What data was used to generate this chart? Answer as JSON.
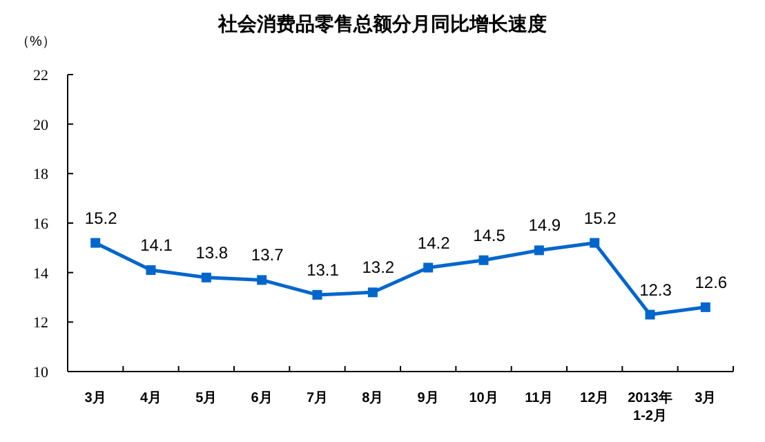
{
  "chart_data": {
    "type": "line",
    "title": "社会消费品零售总额分月同比增长速度",
    "ylabel": "（%）",
    "categories": [
      "3月",
      "4月",
      "5月",
      "6月",
      "7月",
      "8月",
      "9月",
      "10月",
      "11月",
      "12月",
      "2013年\n1-2月",
      "3月"
    ],
    "series": [
      {
        "color": "#0066cc",
        "values": [
          15.2,
          14.1,
          13.8,
          13.7,
          13.1,
          13.2,
          14.2,
          14.5,
          14.9,
          15.2,
          12.3,
          12.6
        ]
      }
    ],
    "ylim": [
      10,
      22
    ],
    "yticks": [
      10,
      12,
      14,
      16,
      18,
      20,
      22
    ],
    "grid": false,
    "marker": "square",
    "line_style": "solid",
    "data_labels": true
  }
}
